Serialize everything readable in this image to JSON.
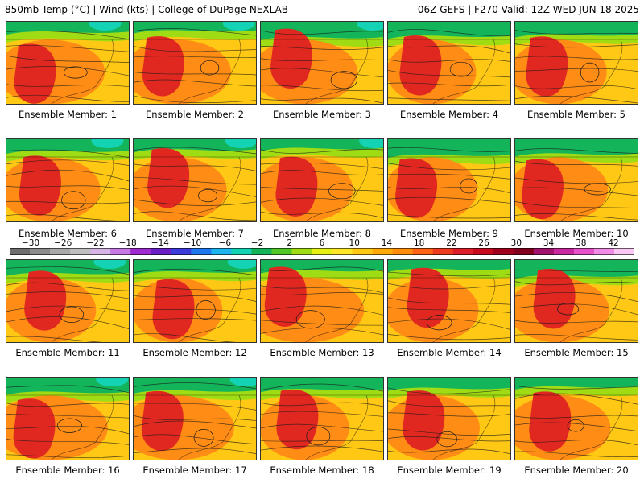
{
  "header": {
    "title_left": "850mb Temp (°C) | Wind (kts) | College of DuPage NEXLAB",
    "title_right": "06Z GEFS | F270 Valid: 12Z WED JUN 18 2025"
  },
  "members": [
    "Ensemble Member: 1",
    "Ensemble Member: 2",
    "Ensemble Member: 3",
    "Ensemble Member: 4",
    "Ensemble Member: 5",
    "Ensemble Member: 6",
    "Ensemble Member: 7",
    "Ensemble Member: 8",
    "Ensemble Member: 9",
    "Ensemble Member: 10",
    "Ensemble Member: 11",
    "Ensemble Member: 12",
    "Ensemble Member: 13",
    "Ensemble Member: 14",
    "Ensemble Member: 15",
    "Ensemble Member: 16",
    "Ensemble Member: 17",
    "Ensemble Member: 18",
    "Ensemble Member: 19",
    "Ensemble Member: 20"
  ],
  "colorbar": {
    "labels": [
      "−30",
      "−26",
      "−22",
      "−18",
      "−14",
      "−10",
      "−6",
      "−2",
      "2",
      "6",
      "10",
      "14",
      "18",
      "22",
      "26",
      "30",
      "34",
      "38",
      "42"
    ],
    "colors": [
      "#6e6e6e",
      "#8c8c8c",
      "#a9a9a9",
      "#bfbfbf",
      "#d6b4e6",
      "#c878e6",
      "#a02ad2",
      "#6a1ec8",
      "#3c3cdc",
      "#1e78f0",
      "#1eb4f0",
      "#14d2b4",
      "#14b45a",
      "#50c828",
      "#a0dc14",
      "#e6f014",
      "#ffe628",
      "#ffc814",
      "#ffaa0a",
      "#ff8c0a",
      "#ff6414",
      "#f03c1e",
      "#dc1e28",
      "#c80a1e",
      "#a0001e",
      "#82001e",
      "#a0146e",
      "#c828a0",
      "#e650c8",
      "#f08ce6",
      "#fac8f5"
    ]
  },
  "map_colors": {
    "hot": "#e02820",
    "warm": "#ff8c14",
    "mild": "#ffc814",
    "cool": "#a0dc14",
    "cold": "#14b45a",
    "coldest": "#14d2b4",
    "contour": "#1a1a1a"
  }
}
